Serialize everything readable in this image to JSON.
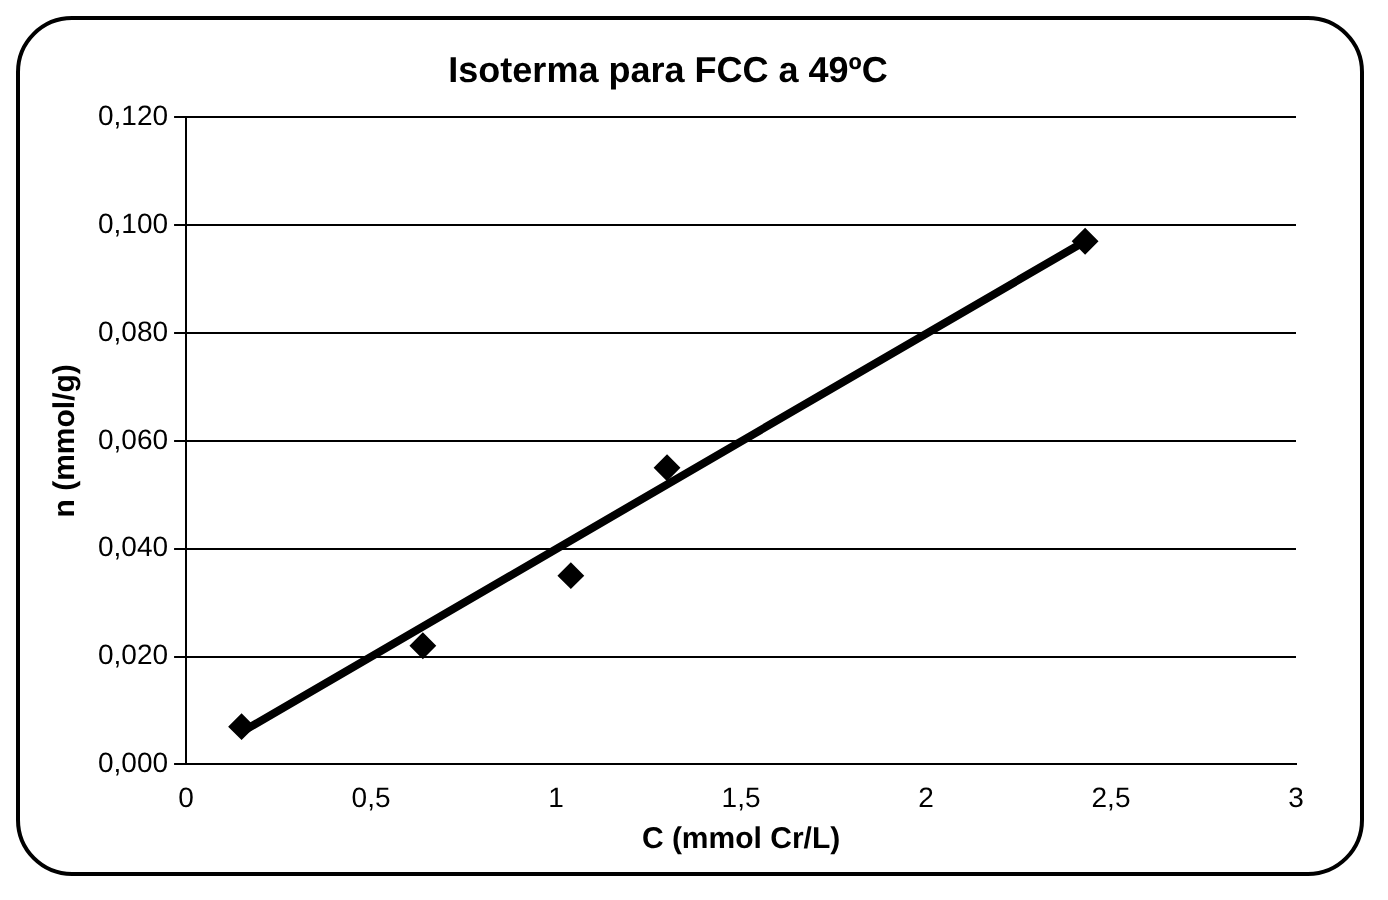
{
  "chart_data": {
    "type": "scatter",
    "title": "Isoterma para FCC a 49ºC",
    "xlabel": "C (mmol Cr/L)",
    "ylabel": "n (mmol/g)",
    "series": [
      {
        "color": "#000000",
        "marker": "diamond",
        "x": [
          0.15,
          0.64,
          1.04,
          1.3,
          2.43
        ],
        "values": [
          0.007,
          0.022,
          0.035,
          0.055,
          0.097
        ]
      },
      {
        "type": "line",
        "color": "#000000",
        "marker": "none",
        "line_style": "solid",
        "x": [
          0.15,
          2.43
        ],
        "values": [
          0.006,
          0.097
        ]
      }
    ],
    "xlim": [
      0,
      3
    ],
    "xticks": [
      0,
      {
        "value": 0.5,
        "label": "0,5"
      },
      1,
      {
        "value": 1.5,
        "label": "1,5"
      },
      2,
      {
        "value": 2.5,
        "label": "2,5"
      },
      3
    ],
    "ylim": [
      0,
      0.12
    ],
    "yticks": [
      {
        "value": 0,
        "label": "0,000"
      },
      {
        "value": 0.02,
        "label": "0,020"
      },
      {
        "value": 0.04,
        "label": "0,040"
      },
      {
        "value": 0.06,
        "label": "0,060"
      },
      {
        "value": 0.08,
        "label": "0,080"
      },
      {
        "value": 0.1,
        "label": "0,100"
      },
      {
        "value": 0.12,
        "label": "0,120"
      }
    ],
    "grid": "y",
    "legend": false
  }
}
